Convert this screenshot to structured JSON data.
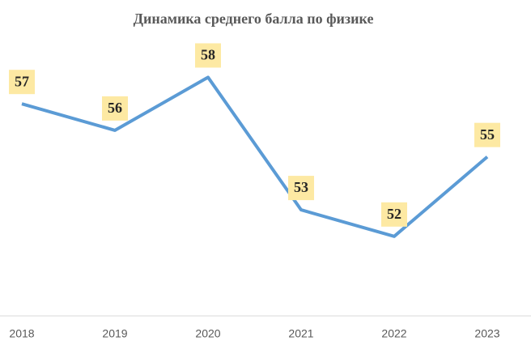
{
  "chart_data": {
    "type": "line",
    "title": "Динамика среднего балла по физике",
    "categories": [
      "2018",
      "2019",
      "2020",
      "2021",
      "2022",
      "2023"
    ],
    "values": [
      57,
      56,
      58,
      53,
      52,
      55
    ],
    "color": "#5b9bd5",
    "label_color": "#fde9a3",
    "ylim": [
      49,
      60
    ]
  }
}
